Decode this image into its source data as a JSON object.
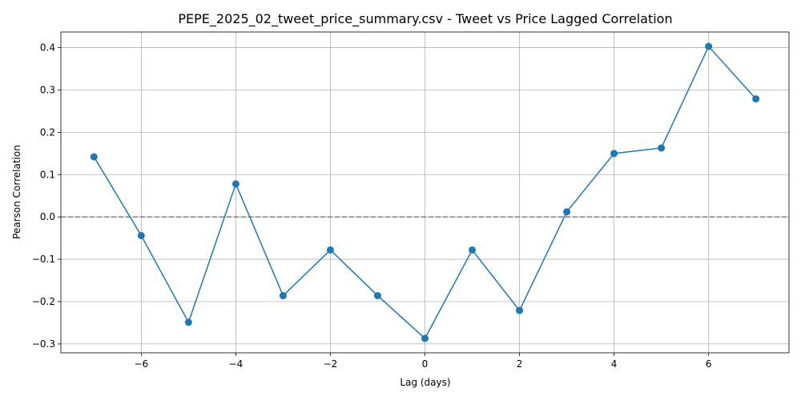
{
  "chart_data": {
    "type": "line",
    "title": "PEPE_2025_02_tweet_price_summary.csv - Tweet vs Price Lagged Correlation",
    "xlabel": "Lag (days)",
    "ylabel": "Pearson Correlation",
    "x": [
      -7,
      -6,
      -5,
      -4,
      -3,
      -2,
      -1,
      0,
      1,
      2,
      3,
      4,
      5,
      6,
      7
    ],
    "series": [
      {
        "values": [
          0.142,
          -0.044,
          -0.249,
          0.078,
          -0.186,
          -0.078,
          -0.186,
          -0.287,
          -0.078,
          -0.221,
          0.012,
          0.15,
          0.163,
          0.403,
          0.279
        ],
        "color": "#1f77b4",
        "marker": "circle"
      }
    ],
    "xlim": [
      -7.7,
      7.7
    ],
    "ylim": [
      -0.321,
      0.437
    ],
    "xticks": [
      -6,
      -4,
      -2,
      0,
      2,
      4,
      6
    ],
    "xtick_labels": [
      "−6",
      "−4",
      "−2",
      "0",
      "2",
      "4",
      "6"
    ],
    "yticks": [
      -0.3,
      -0.2,
      -0.1,
      0.0,
      0.1,
      0.2,
      0.3,
      0.4
    ],
    "ytick_labels": [
      "−0.3",
      "−0.2",
      "−0.1",
      "0.0",
      "0.1",
      "0.2",
      "0.3",
      "0.4"
    ],
    "grid": true,
    "reference_line": {
      "y": 0,
      "style": "dashed",
      "color": "#808080"
    }
  }
}
